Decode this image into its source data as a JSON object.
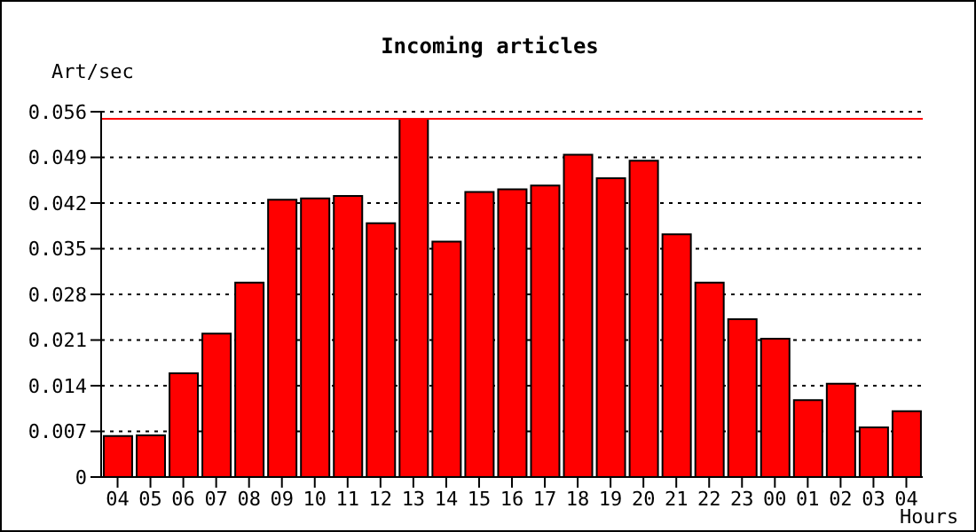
{
  "chart_data": {
    "type": "bar",
    "title": "Incoming articles",
    "ylabel": "Art/sec",
    "xlabel": "Hours",
    "categories": [
      "04",
      "05",
      "06",
      "07",
      "08",
      "09",
      "10",
      "11",
      "12",
      "13",
      "14",
      "15",
      "16",
      "17",
      "18",
      "19",
      "20",
      "21",
      "22",
      "23",
      "00",
      "01",
      "02",
      "03",
      "04"
    ],
    "values": [
      0.0063,
      0.0064,
      0.0159,
      0.022,
      0.0298,
      0.0425,
      0.0427,
      0.0431,
      0.0389,
      0.0549,
      0.0361,
      0.0437,
      0.0441,
      0.0447,
      0.0494,
      0.0458,
      0.0485,
      0.0372,
      0.0298,
      0.0242,
      0.0212,
      0.0118,
      0.0143,
      0.0076,
      0.0101
    ],
    "color": "#ff0000",
    "ylim": [
      0,
      0.056
    ],
    "yticks": [
      0,
      0.007,
      0.014,
      0.021,
      0.028,
      0.035,
      0.042,
      0.049,
      0.056
    ],
    "grid": "y",
    "ref_lines": [
      {
        "axis": "y",
        "value": 0.0549,
        "color": "#ff0000"
      }
    ]
  }
}
